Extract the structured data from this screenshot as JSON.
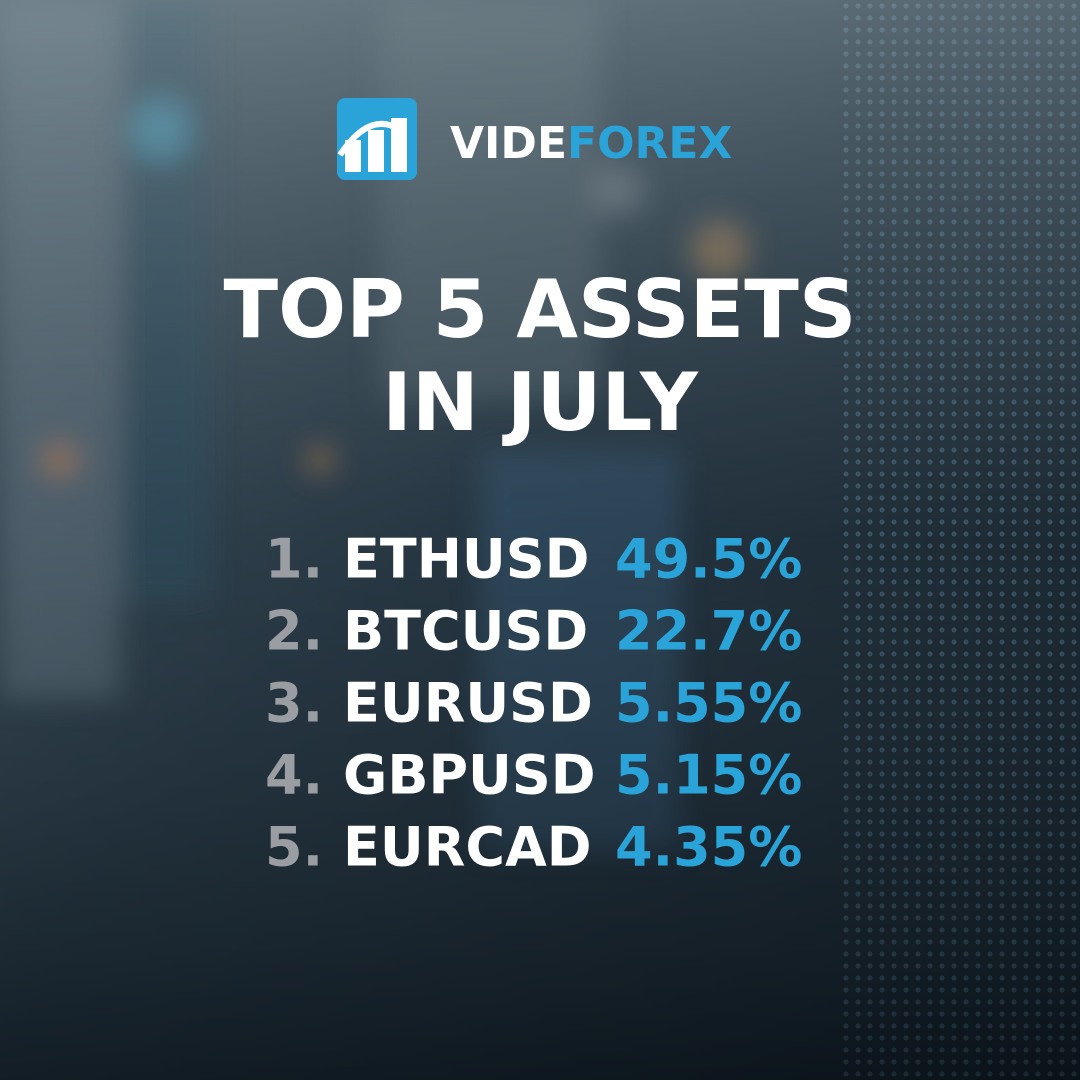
{
  "logo": {
    "part1": "VIDE",
    "part2": "FOREX"
  },
  "title": {
    "line1": "TOP 5 ASSETS",
    "line2": "IN JULY"
  },
  "list": [
    {
      "rank": "1.",
      "asset": "ETHUSD",
      "value": "49.5%"
    },
    {
      "rank": "2.",
      "asset": "BTCUSD",
      "value": "22.7%"
    },
    {
      "rank": "3.",
      "asset": "EURUSD",
      "value": "5.55%"
    },
    {
      "rank": "4.",
      "asset": "GBPUSD",
      "value": "5.15%"
    },
    {
      "rank": "5.",
      "asset": "EURCAD",
      "value": "4.35%"
    }
  ]
}
